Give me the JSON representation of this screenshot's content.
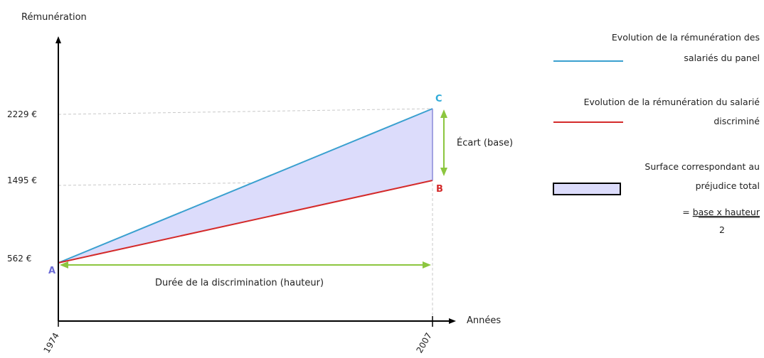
{
  "axes": {
    "y_title": "Rémunération",
    "x_title": "Années"
  },
  "y_ticks": [
    "2229 €",
    "1495 €",
    "562 €"
  ],
  "x_ticks": [
    "1974",
    "2007"
  ],
  "points": {
    "a": "A",
    "b": "B",
    "c": "C"
  },
  "annotations": {
    "ecart": "Écart (base)",
    "duree": "Durée de la discrimination (hauteur)"
  },
  "legend": {
    "panel_line1": "Evolution de la rémunération des",
    "panel_line2": "salariés du panel",
    "discr_line1": "Evolution de la rémunération du salarié",
    "discr_line2": "discriminé",
    "surface_line1": "Surface correspondant au",
    "surface_line2": "préjudice total",
    "formula_prefix": "= ",
    "formula_numerator": "base x hauteur",
    "formula_denominator": "2"
  },
  "chart_data": {
    "type": "line",
    "xlabel": "Années",
    "ylabel": "Rémunération",
    "x": [
      1974,
      2007
    ],
    "series": [
      {
        "name": "Evolution de la rémunération des salariés du panel",
        "values": [
          562,
          2229
        ]
      },
      {
        "name": "Evolution de la rémunération du salarié discriminé",
        "values": [
          562,
          1495
        ]
      }
    ],
    "y_ticks": [
      562,
      1495,
      2229
    ],
    "x_ticks": [
      1974,
      2007
    ],
    "shaded_area": "Surface correspondant au préjudice total",
    "colors": {
      "panel": "#3aa0cf",
      "discrimine": "#d42a2a",
      "surface_fill": "#dcdcfb",
      "arrows": "#8cc63f",
      "point_a": "#6a6ad6",
      "point_b": "#d42a2a",
      "point_c": "#2eaad8"
    }
  }
}
